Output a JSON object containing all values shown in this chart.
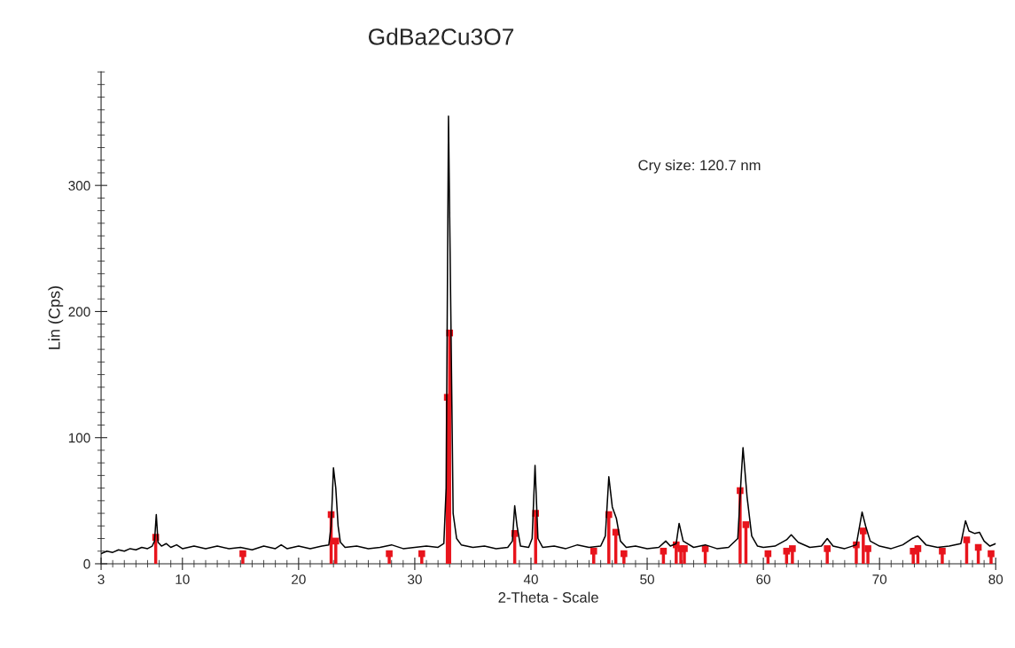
{
  "chart_data": {
    "type": "line",
    "title": "GdBa2Cu3O7",
    "xlabel": "2-Theta - Scale",
    "ylabel": "Lin (Cps)",
    "annotations": [
      "Cry size: 120.7 nm"
    ],
    "xlim": [
      3,
      80
    ],
    "xticks": [
      3,
      10,
      20,
      30,
      40,
      50,
      60,
      70,
      80
    ],
    "ylim": [
      0,
      390
    ],
    "yticks": [
      0,
      100,
      200,
      300
    ],
    "grid": false,
    "legend": false,
    "series": [
      {
        "color": "#000000",
        "marker": "none",
        "x": [
          3,
          3.5,
          4,
          4.5,
          5,
          5.5,
          6,
          6.5,
          7,
          7.4,
          7.6,
          7.75,
          7.9,
          8.2,
          8.6,
          9,
          9.5,
          10,
          11,
          12,
          13,
          14,
          15,
          16,
          17,
          18,
          18.5,
          19,
          20,
          21,
          22,
          22.6,
          22.8,
          23.0,
          23.2,
          23.4,
          23.6,
          24,
          25,
          26,
          27,
          28,
          29,
          30,
          31,
          32,
          32.5,
          32.7,
          32.9,
          33.1,
          33.3,
          33.6,
          34,
          35,
          36,
          37,
          38,
          38.4,
          38.6,
          38.8,
          39.1,
          39.8,
          40.1,
          40.35,
          40.6,
          41,
          42,
          43,
          44,
          45,
          46,
          46.4,
          46.7,
          47.0,
          47.35,
          47.7,
          48.2,
          49,
          50,
          51,
          51.6,
          52,
          52.5,
          52.75,
          53.1,
          54,
          55,
          56,
          57,
          57.8,
          58.1,
          58.25,
          58.6,
          59,
          59.5,
          60,
          61,
          62,
          62.4,
          63,
          64,
          65,
          65.5,
          66,
          67,
          68,
          68.5,
          68.8,
          69.2,
          70,
          71,
          72,
          72.8,
          73.3,
          74,
          75,
          76,
          77,
          77.4,
          77.7,
          78.2,
          78.6,
          79,
          79.5,
          80
        ],
        "values": [
          8,
          10,
          9,
          11,
          10,
          12,
          11,
          13,
          12,
          14,
          18,
          39,
          17,
          14,
          16,
          13,
          15,
          12,
          14,
          12,
          14,
          12,
          13,
          11,
          14,
          12,
          15,
          12,
          14,
          12,
          14,
          15,
          30,
          76,
          60,
          30,
          17,
          13,
          14,
          12,
          13,
          15,
          12,
          13,
          14,
          13,
          16,
          60,
          355,
          200,
          40,
          20,
          15,
          13,
          14,
          12,
          13,
          18,
          46,
          30,
          14,
          13,
          20,
          78,
          20,
          13,
          14,
          12,
          15,
          13,
          14,
          22,
          69,
          45,
          36,
          18,
          13,
          14,
          12,
          13,
          18,
          14,
          16,
          32,
          18,
          13,
          15,
          12,
          13,
          20,
          70,
          92,
          53,
          22,
          14,
          13,
          14,
          19,
          23,
          17,
          13,
          14,
          20,
          14,
          12,
          15,
          41,
          30,
          18,
          14,
          12,
          15,
          20,
          22,
          15,
          13,
          14,
          16,
          34,
          26,
          24,
          25,
          18,
          14,
          16
        ]
      },
      {
        "type": "lollipop",
        "color": "#e8141c",
        "marker": "square",
        "x": [
          7.7,
          15.2,
          22.8,
          23.2,
          27.8,
          30.6,
          32.8,
          33.0,
          38.6,
          40.4,
          45.4,
          46.7,
          47.3,
          48.0,
          51.4,
          52.5,
          52.9,
          53.2,
          55.0,
          58.0,
          58.5,
          60.4,
          62.0,
          62.5,
          65.5,
          68.0,
          68.6,
          69.0,
          72.9,
          73.3,
          75.4,
          77.5,
          78.5,
          79.6
        ],
        "values": [
          21,
          8,
          39,
          18,
          8,
          8,
          132,
          183,
          24,
          40,
          10,
          39,
          25,
          8,
          10,
          15,
          12,
          12,
          12,
          58,
          31,
          8,
          10,
          12,
          12,
          15,
          26,
          12,
          10,
          12,
          10,
          19,
          13,
          8
        ]
      }
    ]
  }
}
